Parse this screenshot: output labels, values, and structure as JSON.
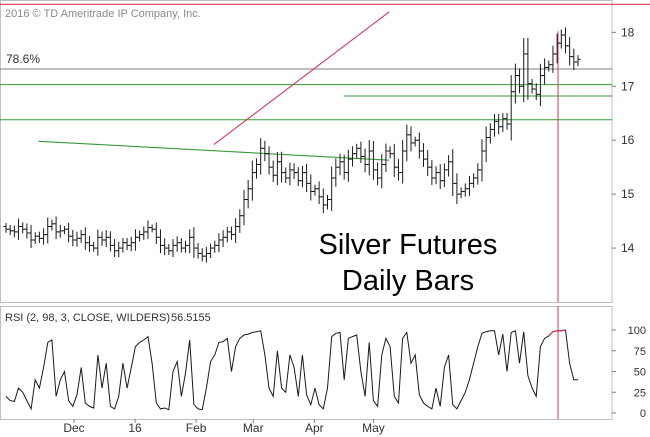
{
  "copyright": "2016 © TD Ameritrade IP Company, Inc.",
  "colors": {
    "bars": "#1a1a1a",
    "green": "#3a9a3a",
    "red": "#d23a54",
    "grey": "#7f7f7f",
    "frame": "#bfbfbf"
  },
  "chart_data": [
    {
      "type": "bar",
      "subtype": "ohlc",
      "instrument_annotation": [
        "Silver Futures",
        "Daily Bars"
      ],
      "ylim": [
        13.0,
        18.6
      ],
      "y_ticks": [
        "18",
        "17",
        "16",
        "15",
        "14"
      ],
      "x_ticks": [
        "Dec",
        "16",
        "Feb",
        "Mar",
        "Apr",
        "May"
      ],
      "fib_label": "78.6%",
      "levels": {
        "fib_786": 17.32,
        "green_upper": 17.03,
        "green_lower": 16.38,
        "top_red": 18.52
      },
      "trendlines": [
        {
          "role": "green-descending",
          "from": [
            "Nov 13",
            15.98
          ],
          "to": [
            "May 9",
            15.63
          ]
        },
        {
          "role": "red-ascending",
          "from": [
            "Feb 10",
            15.92
          ],
          "to": [
            "May 9",
            18.38
          ]
        }
      ],
      "short_marker": {
        "date": "Apr 22",
        "level": 16.82
      },
      "grid": false,
      "closes": [
        14.35,
        14.32,
        14.3,
        14.4,
        14.35,
        14.28,
        14.15,
        14.22,
        14.18,
        14.25,
        14.4,
        14.45,
        14.3,
        14.32,
        14.35,
        14.22,
        14.15,
        14.18,
        14.25,
        14.1,
        14.05,
        14.0,
        14.2,
        14.15,
        14.2,
        14.05,
        13.95,
        14.0,
        14.1,
        14.05,
        14.1,
        14.2,
        14.25,
        14.3,
        14.38,
        14.35,
        14.2,
        14.05,
        14.0,
        13.95,
        14.05,
        14.1,
        14.0,
        14.05,
        14.2,
        14.0,
        13.9,
        13.85,
        13.9,
        14.0,
        14.05,
        14.15,
        14.2,
        14.3,
        14.25,
        14.4,
        14.6,
        14.9,
        15.1,
        15.4,
        15.55,
        15.85,
        15.75,
        15.5,
        15.35,
        15.6,
        15.4,
        15.3,
        15.45,
        15.4,
        15.25,
        15.4,
        15.2,
        15.05,
        15.1,
        14.95,
        14.8,
        14.9,
        15.3,
        15.5,
        15.6,
        15.4,
        15.65,
        15.75,
        15.85,
        15.7,
        15.55,
        15.8,
        15.45,
        15.3,
        15.55,
        15.8,
        15.75,
        15.5,
        15.4,
        15.8,
        16.1,
        15.95,
        16.0,
        15.8,
        15.65,
        15.5,
        15.3,
        15.4,
        15.25,
        15.45,
        15.6,
        15.2,
        15.0,
        15.05,
        15.1,
        15.2,
        15.3,
        15.45,
        15.8,
        16.05,
        16.2,
        16.35,
        16.25,
        16.4,
        16.3,
        16.9,
        17.2,
        17.0,
        17.6,
        17.05,
        16.95,
        16.85,
        17.2,
        17.35,
        17.4,
        17.6,
        17.8,
        17.95,
        17.75,
        17.55,
        17.45,
        17.5
      ],
      "rsi": {
        "label": "RSI (2, 98, 3, CLOSE, WILDERS)",
        "value": "56.5155",
        "ylim": [
          0,
          100
        ],
        "y_ticks": [
          "100",
          "75",
          "50",
          "25",
          "0"
        ],
        "values": [
          20,
          15,
          14,
          30,
          25,
          15,
          5,
          40,
          30,
          55,
          85,
          88,
          20,
          40,
          50,
          15,
          8,
          22,
          55,
          12,
          8,
          6,
          70,
          30,
          60,
          8,
          5,
          20,
          60,
          30,
          55,
          80,
          85,
          88,
          92,
          60,
          12,
          5,
          6,
          4,
          50,
          62,
          20,
          48,
          88,
          10,
          5,
          4,
          30,
          62,
          70,
          85,
          86,
          90,
          50,
          80,
          90,
          94,
          95,
          97,
          98,
          99,
          70,
          30,
          20,
          75,
          30,
          25,
          70,
          55,
          20,
          70,
          22,
          10,
          30,
          10,
          5,
          30,
          92,
          96,
          97,
          40,
          90,
          92,
          94,
          50,
          20,
          85,
          15,
          8,
          70,
          90,
          80,
          20,
          12,
          90,
          97,
          60,
          70,
          22,
          12,
          8,
          5,
          30,
          8,
          55,
          70,
          10,
          5,
          15,
          25,
          40,
          60,
          80,
          96,
          98,
          99,
          99,
          70,
          95,
          50,
          97,
          99,
          60,
          98,
          45,
          30,
          20,
          80,
          90,
          93,
          98,
          99,
          99,
          100,
          60,
          40,
          40
        ]
      }
    }
  ]
}
